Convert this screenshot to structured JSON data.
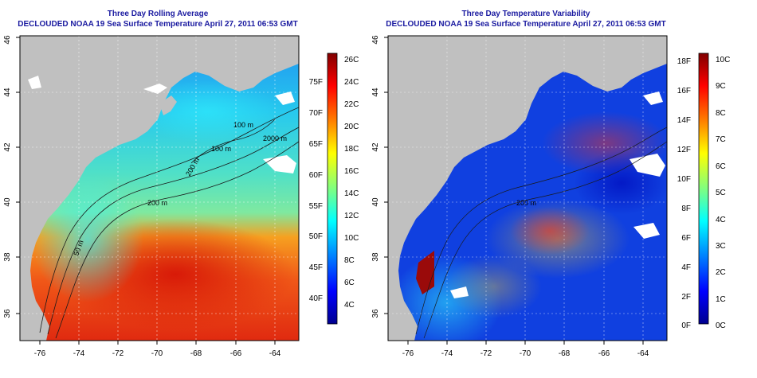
{
  "panels": [
    {
      "title_line1": "Three Day Rolling Average",
      "title_line2": "DECLOUDED NOAA 19 Sea Surface Temperature April 27, 2011 06:53 GMT",
      "x_ticks": [
        "-76",
        "-74",
        "-72",
        "-70",
        "-68",
        "-66",
        "-64"
      ],
      "y_ticks": [
        "36",
        "38",
        "40",
        "42",
        "44",
        "46"
      ],
      "contour_labels": [
        "100 m",
        "100 m",
        "2000 m",
        "200 m",
        "200 m",
        "50 m"
      ],
      "colorbar": {
        "left_labels": [
          "26C",
          "24C",
          "22C",
          "20C",
          "18C",
          "16C",
          "14C",
          "12C",
          "10C",
          "8C",
          "6C",
          "4C"
        ],
        "right_labels": [
          "75F",
          "70F",
          "65F",
          "60F",
          "55F",
          "50F",
          "45F",
          "40F"
        ],
        "colors": [
          "#00008f",
          "#0000ff",
          "#0080ff",
          "#00ffff",
          "#80ff80",
          "#ffff00",
          "#ff8000",
          "#ff0000",
          "#800000"
        ]
      }
    },
    {
      "title_line1": "Three Day Temperature Variability",
      "title_line2": "DECLOUDED NOAA 19 Sea Surface Temperature April 27, 2011 06:53 GMT",
      "x_ticks": [
        "-76",
        "-74",
        "-72",
        "-70",
        "-68",
        "-66",
        "-64"
      ],
      "y_ticks": [
        "36",
        "38",
        "40",
        "42",
        "44",
        "46"
      ],
      "contour_labels": [
        "200 m"
      ],
      "colorbar": {
        "left_labels": [
          "18F",
          "16F",
          "14F",
          "12F",
          "10F",
          "8F",
          "6F",
          "4F",
          "2F",
          "0F"
        ],
        "right_labels": [
          "10C",
          "9C",
          "8C",
          "7C",
          "6C",
          "5C",
          "4C",
          "3C",
          "2C",
          "1C",
          "0C"
        ],
        "colors": [
          "#00008f",
          "#0000ff",
          "#0080ff",
          "#00ffff",
          "#80ff80",
          "#ffff00",
          "#ff8000",
          "#ff0000",
          "#800000"
        ]
      }
    }
  ],
  "map_colors": {
    "land": "#c0c0c0",
    "cloud": "#ffffff"
  }
}
